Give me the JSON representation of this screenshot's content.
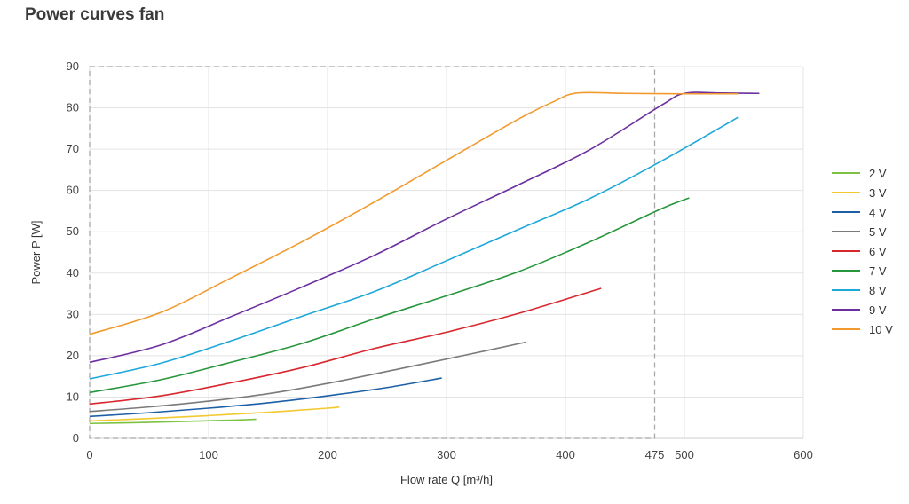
{
  "page": {
    "title": "Power curves fan"
  },
  "chart_data": {
    "type": "line",
    "title": "Power curves fan",
    "xlabel": "Flow rate Q [m³/h]",
    "ylabel": "Power P [W]",
    "xlim": [
      0,
      600
    ],
    "ylim": [
      0,
      90
    ],
    "xticks": [
      0,
      100,
      200,
      300,
      400,
      475,
      500,
      600
    ],
    "yticks": [
      0,
      10,
      20,
      30,
      40,
      50,
      60,
      70,
      80,
      90
    ],
    "grid": true,
    "legend_position": "right",
    "marker_box": {
      "x_max": 475,
      "y_max": 90,
      "style": "dashed"
    },
    "series": [
      {
        "name": "2 V",
        "color": "#7dc242",
        "x": [
          0,
          40,
          80,
          120,
          140
        ],
        "y": [
          3.6,
          3.8,
          4.1,
          4.4,
          4.6
        ]
      },
      {
        "name": "3 V",
        "color": "#f2c930",
        "x": [
          0,
          50,
          100,
          150,
          200,
          210
        ],
        "y": [
          4.2,
          4.8,
          5.5,
          6.3,
          7.3,
          7.6
        ]
      },
      {
        "name": "4 V",
        "color": "#1d5fa6",
        "x": [
          0,
          50,
          100,
          150,
          200,
          250,
          296
        ],
        "y": [
          5.3,
          6.2,
          7.3,
          8.6,
          10.3,
          12.3,
          14.6
        ]
      },
      {
        "name": "5 V",
        "color": "#7a7a7a",
        "x": [
          0,
          50,
          100,
          150,
          200,
          260,
          320,
          367
        ],
        "y": [
          6.5,
          7.6,
          9.0,
          10.8,
          13.3,
          16.8,
          20.4,
          23.3
        ]
      },
      {
        "name": "6 V",
        "color": "#d9272e",
        "x": [
          0,
          60,
          120,
          180,
          240,
          300,
          360,
          430
        ],
        "y": [
          8.3,
          10.3,
          13.5,
          17.2,
          21.8,
          25.7,
          30.2,
          36.3
        ]
      },
      {
        "name": "7 V",
        "color": "#27963c",
        "x": [
          0,
          60,
          120,
          180,
          240,
          300,
          360,
          420,
          480,
          504
        ],
        "y": [
          11.1,
          14.2,
          18.5,
          23.1,
          29.0,
          34.5,
          40.3,
          47.5,
          55.5,
          58.2
        ]
      },
      {
        "name": "8 V",
        "color": "#1ea7d9",
        "x": [
          0,
          60,
          120,
          180,
          240,
          300,
          360,
          420,
          480,
          545
        ],
        "y": [
          14.4,
          18.2,
          23.7,
          29.7,
          35.6,
          43.0,
          50.5,
          58.0,
          67.0,
          77.7
        ]
      },
      {
        "name": "9 V",
        "color": "#6b2fa0",
        "x": [
          0,
          60,
          120,
          180,
          240,
          300,
          360,
          420,
          480,
          500,
          530,
          563
        ],
        "y": [
          18.4,
          22.6,
          29.6,
          36.8,
          44.4,
          53.1,
          61.3,
          69.8,
          80.5,
          83.5,
          83.6,
          83.5
        ]
      },
      {
        "name": "10 V",
        "color": "#f29a2e",
        "x": [
          0,
          60,
          120,
          180,
          240,
          300,
          360,
          390,
          410,
          450,
          500,
          545
        ],
        "y": [
          25.2,
          30.5,
          39.0,
          47.8,
          57.3,
          67.3,
          77.2,
          81.5,
          83.6,
          83.5,
          83.4,
          83.4
        ]
      }
    ]
  }
}
